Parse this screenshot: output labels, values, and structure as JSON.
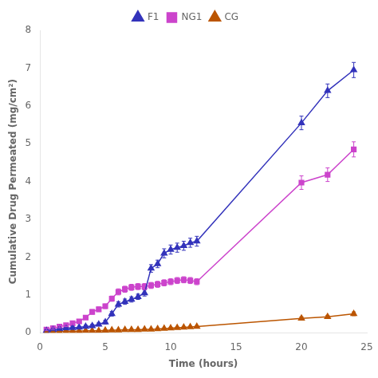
{
  "chart_data": {
    "type": "line",
    "xlabel": "Time (hours)",
    "ylabel": "Cumulative Drug Permeated (mg/cm²)",
    "xlim": [
      0,
      25
    ],
    "ylim": [
      0,
      8
    ],
    "xticks": [
      0,
      5,
      10,
      15,
      20,
      25
    ],
    "yticks": [
      0,
      1,
      2,
      3,
      4,
      5,
      6,
      7,
      8
    ],
    "grid": false,
    "legend": "top",
    "x": [
      0.5,
      1,
      1.5,
      2,
      2.5,
      3,
      3.5,
      4,
      4.5,
      5,
      5.5,
      6,
      6.5,
      7,
      7.5,
      8,
      8.5,
      9,
      9.5,
      10,
      10.5,
      11,
      11.5,
      12,
      20,
      22,
      24
    ],
    "series": [
      {
        "name": "F1",
        "color": "#3333bb",
        "marker": "triangle",
        "values": [
          0.05,
          0.08,
          0.1,
          0.12,
          0.13,
          0.14,
          0.16,
          0.18,
          0.22,
          0.28,
          0.5,
          0.75,
          0.82,
          0.88,
          0.95,
          1.05,
          1.7,
          1.82,
          2.1,
          2.2,
          2.25,
          2.3,
          2.38,
          2.42,
          5.55,
          6.4,
          6.95
        ],
        "yerr": [
          0.03,
          0.03,
          0.03,
          0.03,
          0.03,
          0.03,
          0.04,
          0.04,
          0.04,
          0.05,
          0.06,
          0.07,
          0.07,
          0.07,
          0.07,
          0.08,
          0.1,
          0.1,
          0.12,
          0.12,
          0.12,
          0.12,
          0.12,
          0.13,
          0.18,
          0.18,
          0.2
        ]
      },
      {
        "name": "NG1",
        "color": "#cc44cc",
        "marker": "square",
        "values": [
          0.08,
          0.12,
          0.16,
          0.2,
          0.25,
          0.3,
          0.4,
          0.55,
          0.62,
          0.7,
          0.9,
          1.08,
          1.15,
          1.2,
          1.22,
          1.22,
          1.25,
          1.28,
          1.32,
          1.35,
          1.38,
          1.4,
          1.38,
          1.35,
          3.97,
          4.18,
          4.85
        ],
        "yerr": [
          0.03,
          0.03,
          0.03,
          0.04,
          0.04,
          0.05,
          0.05,
          0.06,
          0.06,
          0.06,
          0.07,
          0.08,
          0.08,
          0.08,
          0.08,
          0.08,
          0.08,
          0.08,
          0.08,
          0.08,
          0.08,
          0.08,
          0.08,
          0.08,
          0.18,
          0.18,
          0.2
        ]
      },
      {
        "name": "CG",
        "color": "#bb5500",
        "marker": "triangle",
        "values": [
          0.02,
          0.03,
          0.03,
          0.04,
          0.04,
          0.04,
          0.05,
          0.05,
          0.05,
          0.06,
          0.07,
          0.07,
          0.08,
          0.08,
          0.08,
          0.09,
          0.09,
          0.1,
          0.11,
          0.12,
          0.13,
          0.14,
          0.15,
          0.16,
          0.38,
          0.42,
          0.5
        ],
        "yerr": [
          0.01,
          0.01,
          0.01,
          0.01,
          0.01,
          0.01,
          0.01,
          0.01,
          0.01,
          0.01,
          0.01,
          0.01,
          0.01,
          0.01,
          0.01,
          0.01,
          0.01,
          0.01,
          0.01,
          0.02,
          0.02,
          0.02,
          0.02,
          0.02,
          0.04,
          0.04,
          0.05
        ]
      }
    ]
  }
}
